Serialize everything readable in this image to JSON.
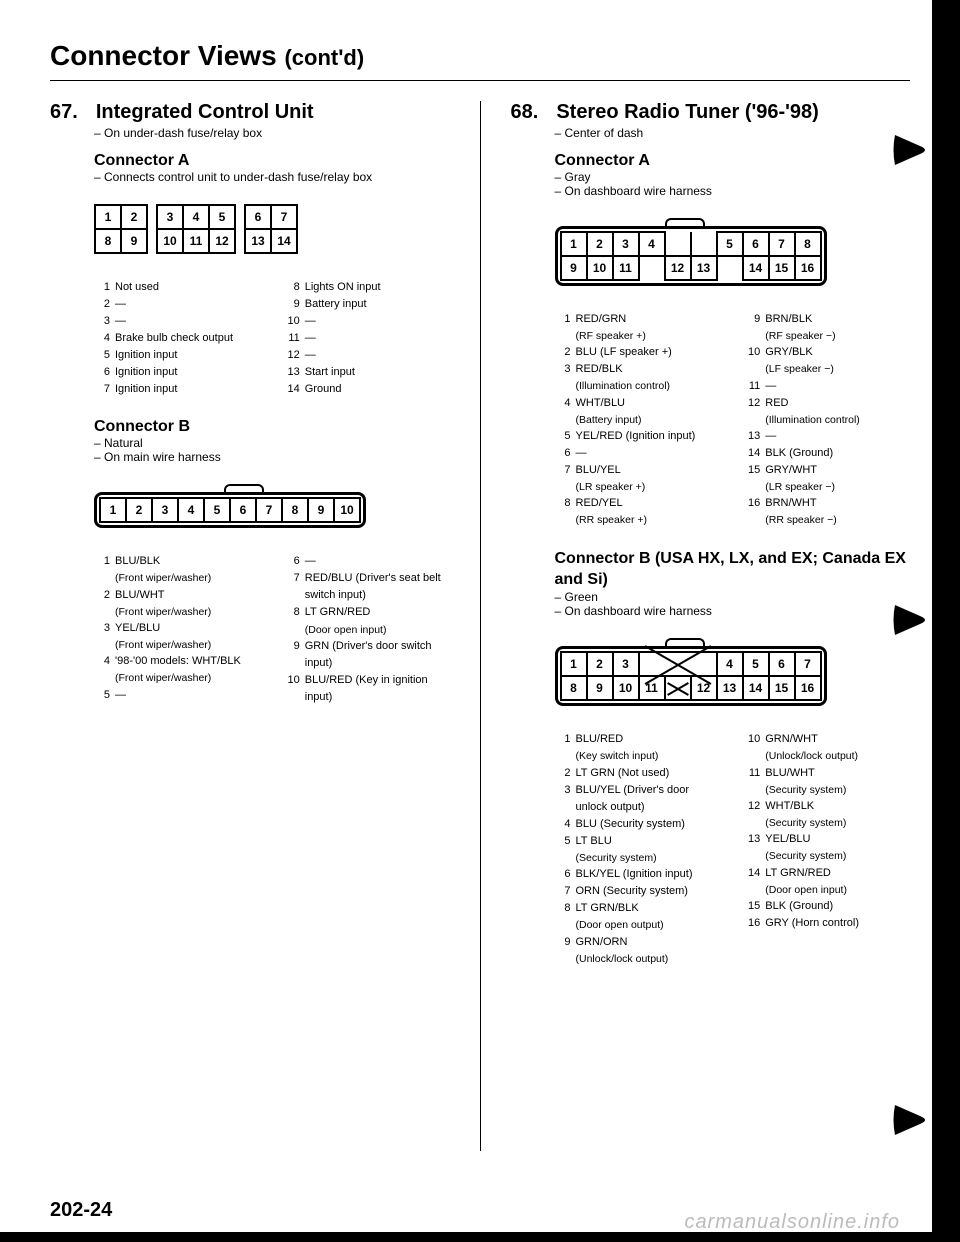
{
  "page": {
    "title_main": "Connector Views",
    "title_contd": "(cont'd)",
    "page_number": "202-24",
    "watermark": "carmanualsonline.info"
  },
  "left": {
    "number": "67.",
    "title": "Integrated Control Unit",
    "location": "On under-dash fuse/relay box",
    "connA": {
      "title": "Connector A",
      "desc": "Connects control unit to under-dash fuse/relay box",
      "rows": [
        [
          "1",
          "2",
          "",
          "3",
          "4",
          "5",
          "",
          "6",
          "7"
        ],
        [
          "8",
          "9",
          "",
          "10",
          "11",
          "12",
          "",
          "13",
          "14"
        ]
      ],
      "pins_left": [
        {
          "n": "1",
          "t": "Not used"
        },
        {
          "n": "2",
          "t": "—"
        },
        {
          "n": "3",
          "t": "—"
        },
        {
          "n": "4",
          "t": "Brake bulb check output"
        },
        {
          "n": "5",
          "t": "Ignition input"
        },
        {
          "n": "6",
          "t": "Ignition input"
        },
        {
          "n": "7",
          "t": "Ignition input"
        }
      ],
      "pins_right": [
        {
          "n": "8",
          "t": "Lights ON input"
        },
        {
          "n": "9",
          "t": "Battery input"
        },
        {
          "n": "10",
          "t": "—"
        },
        {
          "n": "11",
          "t": "—"
        },
        {
          "n": "12",
          "t": "—"
        },
        {
          "n": "13",
          "t": "Start input"
        },
        {
          "n": "14",
          "t": "Ground"
        }
      ]
    },
    "connB": {
      "title": "Connector B",
      "color": "Natural",
      "loc": "On main wire harness",
      "rows": [
        [
          "1",
          "2",
          "3",
          "4",
          "5",
          "6",
          "7",
          "8",
          "9",
          "10"
        ]
      ],
      "pins_left": [
        {
          "n": "1",
          "t": "BLU/BLK",
          "note": "(Front wiper/washer)"
        },
        {
          "n": "2",
          "t": "BLU/WHT",
          "note": "(Front wiper/washer)"
        },
        {
          "n": "3",
          "t": "YEL/BLU",
          "note": "(Front wiper/washer)"
        },
        {
          "n": "4",
          "t": "'98-'00 models: WHT/BLK",
          "note": "(Front wiper/washer)"
        },
        {
          "n": "5",
          "t": "—"
        }
      ],
      "pins_right": [
        {
          "n": "6",
          "t": "—"
        },
        {
          "n": "7",
          "t": "RED/BLU (Driver's seat belt switch input)"
        },
        {
          "n": "8",
          "t": "LT GRN/RED",
          "note": "(Door open input)"
        },
        {
          "n": "9",
          "t": "GRN (Driver's door switch input)"
        },
        {
          "n": "10",
          "t": "BLU/RED (Key in ignition input)"
        }
      ]
    }
  },
  "right": {
    "number": "68.",
    "title": "Stereo Radio Tuner ('96-'98)",
    "location": "Center of dash",
    "connA": {
      "title": "Connector A",
      "color": "Gray",
      "loc": "On dashboard wire harness",
      "rows": [
        [
          "1",
          "2",
          "3",
          "4",
          "",
          "",
          "5",
          "6",
          "7",
          "8"
        ],
        [
          "9",
          "10",
          "11",
          "",
          "12",
          "13",
          "",
          "14",
          "15",
          "16"
        ]
      ],
      "pins_left": [
        {
          "n": "1",
          "t": "RED/GRN",
          "note": "(RF speaker +)"
        },
        {
          "n": "2",
          "t": "BLU (LF speaker +)"
        },
        {
          "n": "3",
          "t": "RED/BLK",
          "note": "(Illumination control)"
        },
        {
          "n": "4",
          "t": "WHT/BLU",
          "note": "(Battery input)"
        },
        {
          "n": "5",
          "t": "YEL/RED (Ignition input)"
        },
        {
          "n": "6",
          "t": "—"
        },
        {
          "n": "7",
          "t": "BLU/YEL",
          "note": "(LR speaker +)"
        },
        {
          "n": "8",
          "t": "RED/YEL",
          "note": "(RR speaker +)"
        }
      ],
      "pins_right": [
        {
          "n": "9",
          "t": "BRN/BLK",
          "note": "(RF speaker −)"
        },
        {
          "n": "10",
          "t": "GRY/BLK",
          "note": "(LF speaker −)"
        },
        {
          "n": "11",
          "t": "—"
        },
        {
          "n": "12",
          "t": "RED",
          "note": "(Illumination control)"
        },
        {
          "n": "13",
          "t": "—"
        },
        {
          "n": "14",
          "t": "BLK (Ground)"
        },
        {
          "n": "15",
          "t": "GRY/WHT",
          "note": "(LR speaker −)"
        },
        {
          "n": "16",
          "t": "BRN/WHT",
          "note": "(RR speaker −)"
        }
      ]
    },
    "connB": {
      "title": "Connector B (USA HX, LX, and EX; Canada EX and Si)",
      "color": "Green",
      "loc": "On dashboard wire harness",
      "rows": [
        [
          "1",
          "2",
          "3",
          "X",
          "4",
          "5",
          "6",
          "7"
        ],
        [
          "8",
          "9",
          "10",
          "11",
          "X",
          "12",
          "13",
          "14",
          "15",
          "16"
        ]
      ],
      "pins_left": [
        {
          "n": "1",
          "t": "BLU/RED",
          "note": "(Key switch input)"
        },
        {
          "n": "2",
          "t": "LT GRN (Not used)"
        },
        {
          "n": "3",
          "t": "BLU/YEL (Driver's door unlock output)"
        },
        {
          "n": "4",
          "t": "BLU (Security system)"
        },
        {
          "n": "5",
          "t": "LT BLU",
          "note": "(Security system)"
        },
        {
          "n": "6",
          "t": "BLK/YEL (Ignition input)"
        },
        {
          "n": "7",
          "t": "ORN (Security system)"
        },
        {
          "n": "8",
          "t": "LT GRN/BLK",
          "note": "(Door open output)"
        },
        {
          "n": "9",
          "t": "GRN/ORN",
          "note": "(Unlock/lock output)"
        }
      ],
      "pins_right": [
        {
          "n": "10",
          "t": "GRN/WHT",
          "note": "(Unlock/lock output)"
        },
        {
          "n": "11",
          "t": "BLU/WHT",
          "note": "(Security system)"
        },
        {
          "n": "12",
          "t": "WHT/BLK",
          "note": "(Security system)"
        },
        {
          "n": "13",
          "t": "YEL/BLU",
          "note": "(Security system)"
        },
        {
          "n": "14",
          "t": "LT GRN/RED",
          "note": "(Door open input)"
        },
        {
          "n": "15",
          "t": "BLK (Ground)"
        },
        {
          "n": "16",
          "t": "GRY (Horn control)"
        }
      ]
    }
  }
}
